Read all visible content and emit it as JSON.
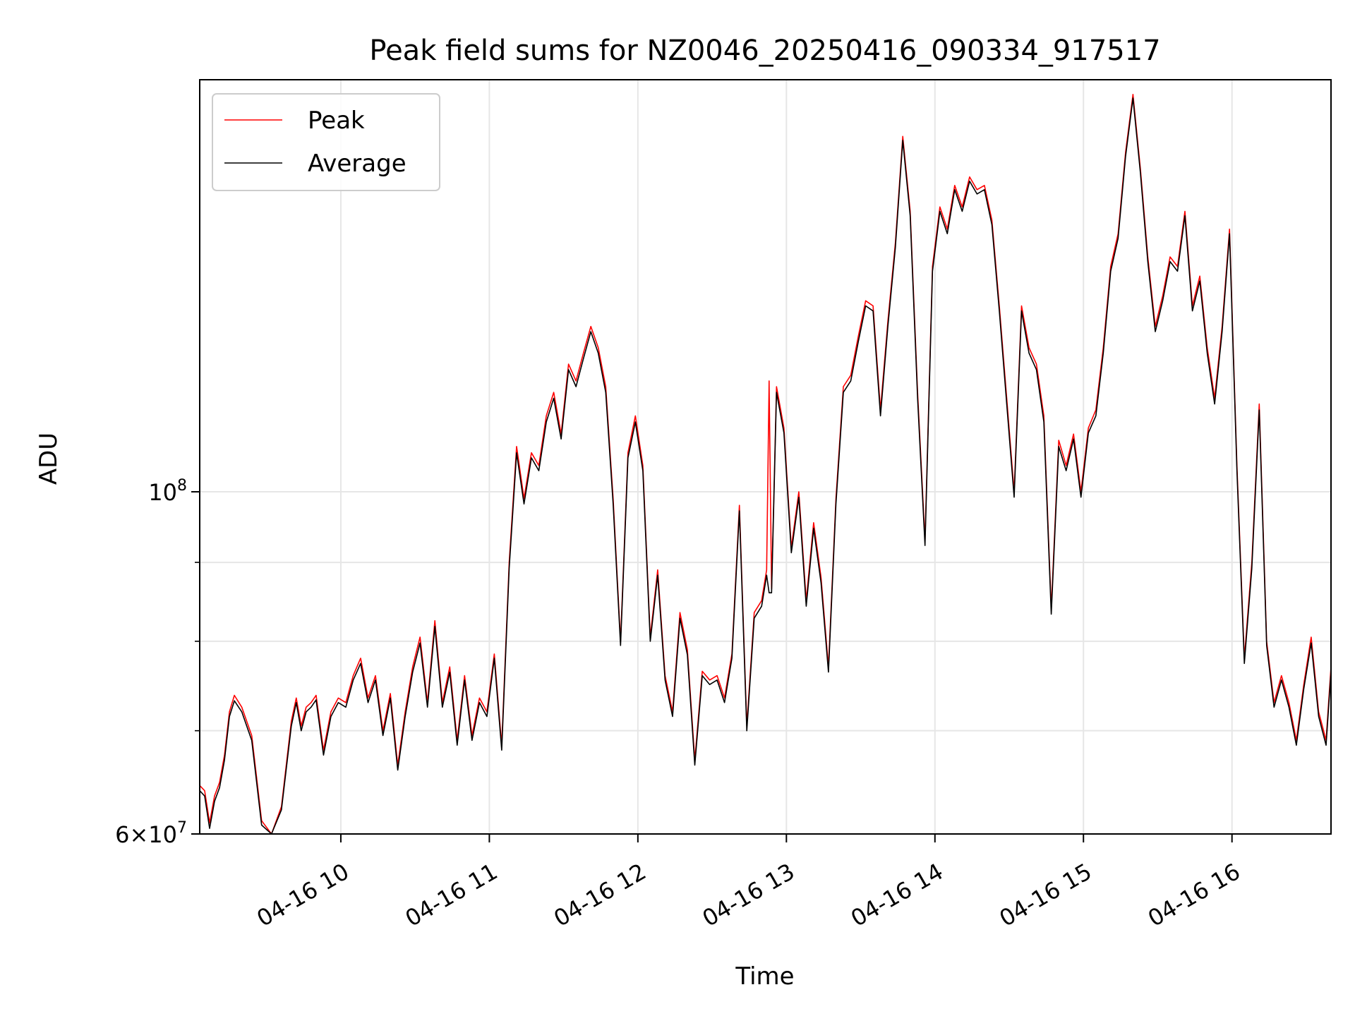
{
  "chart_data": {
    "type": "line",
    "title": "Peak field sums for NZ0046_20250416_090334_917517",
    "xlabel": "Time",
    "ylabel": "ADU",
    "y_scale": "log",
    "ylim": [
      60000000,
      185000000
    ],
    "xlim": [
      "2025-04-16 09:03",
      "2025-04-16 16:40"
    ],
    "grid": true,
    "legend_position": "upper-left",
    "x_ticks": [
      {
        "time": "2025-04-16 10:00",
        "label": "04-16 10"
      },
      {
        "time": "2025-04-16 11:00",
        "label": "04-16 11"
      },
      {
        "time": "2025-04-16 12:00",
        "label": "04-16 12"
      },
      {
        "time": "2025-04-16 13:00",
        "label": "04-16 13"
      },
      {
        "time": "2025-04-16 14:00",
        "label": "04-16 14"
      },
      {
        "time": "2025-04-16 15:00",
        "label": "04-16 15"
      },
      {
        "time": "2025-04-16 16:00",
        "label": "04-16 16"
      }
    ],
    "y_major_ticks": [
      {
        "value": 60000000,
        "mantissa": "6",
        "exp": "7"
      },
      {
        "value": 100000000,
        "mantissa": "",
        "exp": "8"
      }
    ],
    "y_minor_ticks": [
      70000000,
      80000000,
      90000000
    ],
    "series": [
      {
        "name": "Peak",
        "color": "#ff0000",
        "time": [
          "09:03",
          "09:05",
          "09:07",
          "09:09",
          "09:11",
          "09:13",
          "09:15",
          "09:17",
          "09:20",
          "09:24",
          "09:28",
          "09:32",
          "09:36",
          "09:40",
          "09:42",
          "09:44",
          "09:46",
          "09:48",
          "09:50",
          "09:53",
          "09:56",
          "09:59",
          "10:02",
          "10:05",
          "10:08",
          "10:11",
          "10:14",
          "10:17",
          "10:20",
          "10:23",
          "10:26",
          "10:29",
          "10:32",
          "10:35",
          "10:38",
          "10:41",
          "10:44",
          "10:47",
          "10:50",
          "10:53",
          "10:56",
          "10:59",
          "11:02",
          "11:05",
          "11:08",
          "11:11",
          "11:14",
          "11:17",
          "11:20",
          "11:23",
          "11:26",
          "11:29",
          "11:32",
          "11:35",
          "11:38",
          "11:41",
          "11:44",
          "11:47",
          "11:50",
          "11:53",
          "11:56",
          "11:59",
          "12:02",
          "12:05",
          "12:08",
          "12:11",
          "12:14",
          "12:17",
          "12:20",
          "12:23",
          "12:26",
          "12:29",
          "12:32",
          "12:35",
          "12:38",
          "12:41",
          "12:44",
          "12:47",
          "12:50",
          "12:52",
          "12:53",
          "12:54",
          "12:56",
          "12:59",
          "13:02",
          "13:05",
          "13:08",
          "13:11",
          "13:14",
          "13:17",
          "13:20",
          "13:23",
          "13:26",
          "13:29",
          "13:32",
          "13:35",
          "13:38",
          "13:41",
          "13:44",
          "13:47",
          "13:50",
          "13:53",
          "13:56",
          "13:59",
          "14:02",
          "14:05",
          "14:08",
          "14:11",
          "14:14",
          "14:17",
          "14:20",
          "14:23",
          "14:26",
          "14:29",
          "14:32",
          "14:35",
          "14:38",
          "14:41",
          "14:44",
          "14:47",
          "14:50",
          "14:53",
          "14:56",
          "14:59",
          "15:02",
          "15:05",
          "15:08",
          "15:11",
          "15:14",
          "15:17",
          "15:20",
          "15:23",
          "15:26",
          "15:29",
          "15:32",
          "15:35",
          "15:38",
          "15:41",
          "15:44",
          "15:47",
          "15:50",
          "15:53",
          "15:56",
          "15:59",
          "16:02",
          "16:05",
          "16:08",
          "16:11",
          "16:14",
          "16:17",
          "16:20",
          "16:23",
          "16:26",
          "16:29",
          "16:32",
          "16:35",
          "16:38",
          "16:40"
        ],
        "values": [
          64500000,
          64000000,
          61000000,
          63500000,
          64800000,
          67500000,
          72000000,
          73800000,
          72500000,
          69500000,
          61200000,
          60000000,
          62500000,
          71000000,
          73500000,
          70500000,
          72500000,
          73000000,
          73800000,
          68000000,
          72000000,
          73500000,
          73000000,
          76000000,
          78000000,
          73500000,
          76000000,
          70000000,
          74000000,
          66500000,
          72000000,
          77000000,
          80500000,
          73000000,
          82500000,
          73000000,
          77000000,
          69000000,
          76000000,
          69500000,
          73500000,
          72000000,
          78500000,
          68500000,
          90000000,
          107000000,
          99000000,
          106000000,
          104000000,
          112000000,
          116000000,
          109000000,
          121000000,
          118000000,
          123000000,
          128000000,
          124000000,
          117000000,
          99000000,
          80000000,
          106000000,
          112000000,
          104000000,
          80500000,
          89000000,
          76000000,
          72000000,
          83500000,
          79000000,
          67000000,
          76500000,
          75500000,
          76000000,
          73500000,
          78500000,
          98000000,
          70500000,
          83500000,
          85000000,
          89000000,
          118000000,
          86500000,
          117000000,
          110000000,
          92000000,
          100000000,
          85000000,
          95500000,
          88000000,
          77000000,
          99000000,
          117000000,
          119000000,
          126000000,
          133000000,
          132000000,
          113000000,
          129000000,
          145000000,
          170000000,
          152000000,
          116000000,
          93000000,
          140000000,
          153000000,
          148000000,
          158000000,
          153000000,
          160000000,
          157000000,
          158000000,
          150000000,
          132000000,
          115000000,
          100000000,
          132000000,
          124000000,
          121000000,
          112000000,
          84000000,
          108000000,
          104000000,
          109000000,
          100000000,
          110000000,
          113000000,
          124000000,
          140000000,
          147000000,
          166000000,
          181000000,
          162000000,
          142000000,
          128000000,
          134000000,
          142000000,
          140000000,
          152000000,
          132000000,
          138000000,
          124000000,
          115000000,
          128000000,
          148000000,
          104000000,
          78000000,
          90000000,
          114000000,
          80000000,
          73000000,
          76000000,
          73000000,
          69000000,
          75000000,
          80500000,
          72000000,
          69000000,
          77000000
        ]
      },
      {
        "name": "Average",
        "color": "#000000",
        "time": [
          "09:03",
          "09:05",
          "09:07",
          "09:09",
          "09:11",
          "09:13",
          "09:15",
          "09:17",
          "09:20",
          "09:24",
          "09:28",
          "09:32",
          "09:36",
          "09:40",
          "09:42",
          "09:44",
          "09:46",
          "09:48",
          "09:50",
          "09:53",
          "09:56",
          "09:59",
          "10:02",
          "10:05",
          "10:08",
          "10:11",
          "10:14",
          "10:17",
          "10:20",
          "10:23",
          "10:26",
          "10:29",
          "10:32",
          "10:35",
          "10:38",
          "10:41",
          "10:44",
          "10:47",
          "10:50",
          "10:53",
          "10:56",
          "10:59",
          "11:02",
          "11:05",
          "11:08",
          "11:11",
          "11:14",
          "11:17",
          "11:20",
          "11:23",
          "11:26",
          "11:29",
          "11:32",
          "11:35",
          "11:38",
          "11:41",
          "11:44",
          "11:47",
          "11:50",
          "11:53",
          "11:56",
          "11:59",
          "12:02",
          "12:05",
          "12:08",
          "12:11",
          "12:14",
          "12:17",
          "12:20",
          "12:23",
          "12:26",
          "12:29",
          "12:32",
          "12:35",
          "12:38",
          "12:41",
          "12:44",
          "12:47",
          "12:50",
          "12:52",
          "12:53",
          "12:54",
          "12:56",
          "12:59",
          "13:02",
          "13:05",
          "13:08",
          "13:11",
          "13:14",
          "13:17",
          "13:20",
          "13:23",
          "13:26",
          "13:29",
          "13:32",
          "13:35",
          "13:38",
          "13:41",
          "13:44",
          "13:47",
          "13:50",
          "13:53",
          "13:56",
          "13:59",
          "14:02",
          "14:05",
          "14:08",
          "14:11",
          "14:14",
          "14:17",
          "14:20",
          "14:23",
          "14:26",
          "14:29",
          "14:32",
          "14:35",
          "14:38",
          "14:41",
          "14:44",
          "14:47",
          "14:50",
          "14:53",
          "14:56",
          "14:59",
          "15:02",
          "15:05",
          "15:08",
          "15:11",
          "15:14",
          "15:17",
          "15:20",
          "15:23",
          "15:26",
          "15:29",
          "15:32",
          "15:35",
          "15:38",
          "15:41",
          "15:44",
          "15:47",
          "15:50",
          "15:53",
          "15:56",
          "15:59",
          "16:02",
          "16:05",
          "16:08",
          "16:11",
          "16:14",
          "16:17",
          "16:20",
          "16:23",
          "16:26",
          "16:29",
          "16:32",
          "16:35",
          "16:38",
          "16:40"
        ],
        "values": [
          64000000,
          63500000,
          60500000,
          63000000,
          64300000,
          67000000,
          71500000,
          73200000,
          72000000,
          69000000,
          60800000,
          59700000,
          62200000,
          70500000,
          73000000,
          70000000,
          72000000,
          72500000,
          73300000,
          67500000,
          71500000,
          73000000,
          72500000,
          75500000,
          77400000,
          73000000,
          75500000,
          69500000,
          73500000,
          66000000,
          71500000,
          76400000,
          79800000,
          72500000,
          81800000,
          72500000,
          76400000,
          68500000,
          75500000,
          69000000,
          73000000,
          71500000,
          78000000,
          68000000,
          89200000,
          106000000,
          98200000,
          105200000,
          103200000,
          111000000,
          115000000,
          108200000,
          120000000,
          117000000,
          122000000,
          127000000,
          123000000,
          116000000,
          98200000,
          79500000,
          105200000,
          111000000,
          103200000,
          80000000,
          88300000,
          75500000,
          71500000,
          82800000,
          78400000,
          66500000,
          76000000,
          75000000,
          75500000,
          73000000,
          78000000,
          97200000,
          70000000,
          82800000,
          84300000,
          88300000,
          86000000,
          86000000,
          116000000,
          109200000,
          91300000,
          99200000,
          84300000,
          94700000,
          87300000,
          76400000,
          98200000,
          116000000,
          118000000,
          125000000,
          132000000,
          131000000,
          112000000,
          128000000,
          144000000,
          169000000,
          151000000,
          115000000,
          92300000,
          139000000,
          152000000,
          147000000,
          157000000,
          152000000,
          159000000,
          156000000,
          157000000,
          149000000,
          131000000,
          114000000,
          99200000,
          131000000,
          123000000,
          120000000,
          111000000,
          83300000,
          107000000,
          103200000,
          108200000,
          99200000,
          109200000,
          112000000,
          123000000,
          139000000,
          146000000,
          165000000,
          180000000,
          161000000,
          141000000,
          127000000,
          133000000,
          141000000,
          139000000,
          151000000,
          131000000,
          137000000,
          123000000,
          114000000,
          127000000,
          147000000,
          103200000,
          77400000,
          89200000,
          113000000,
          79500000,
          72500000,
          75500000,
          72500000,
          68500000,
          74500000,
          79800000,
          71500000,
          68500000,
          76400000
        ]
      }
    ]
  }
}
